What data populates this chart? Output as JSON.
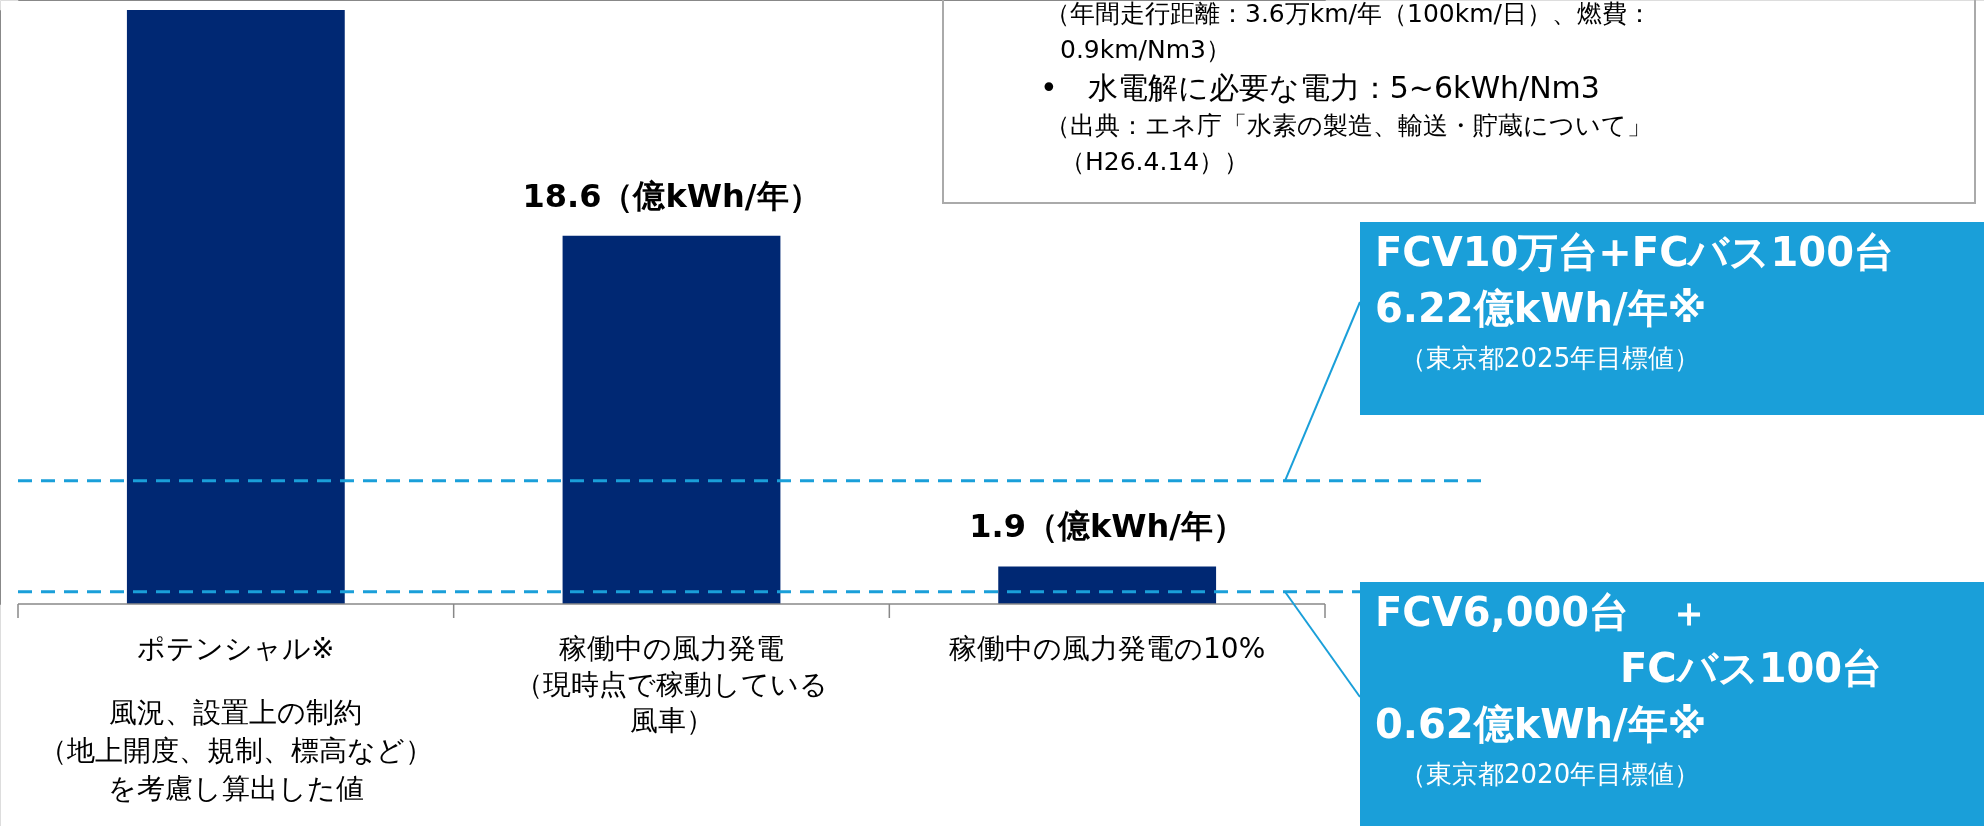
{
  "chart_data": {
    "type": "bar",
    "categories": [
      "ポテンシャル※",
      "稼働中の風力発電（現時点で稼動している風車）",
      "稼働中の風力発電の10%"
    ],
    "values": [
      30,
      18.6,
      1.9
    ],
    "color": "#002873",
    "ylim": [
      0,
      30
    ],
    "tick_labels": "x",
    "value_labels": [
      null,
      "18.6（億kWh/年）",
      "1.9（億kWh/年）"
    ],
    "ref_lines": [
      {
        "axis": "y",
        "value": 6.22,
        "label": "FCV10万台+FCバス100台\n6.22億kWh/年※\n（東京都2025年目標値）",
        "color": "#1a9fd9",
        "line_style": "dashed"
      },
      {
        "axis": "y",
        "value": 0.62,
        "label": "FCV6,000台　＋\nFCバス100台\n0.62億kWh/年※\n（東京都2020年目標値）",
        "color": "#1a9fd9",
        "line_style": "dashed"
      }
    ],
    "annotations": [
      "風況、設置上の制約（地上開度、規制、標高など）を考慮し算出した値",
      "（年間走行距離：3.6万km/年（100km/日）、燃費：0.9km/Nm3）",
      "•　水電解に必要な電力：5~6kWh/Nm3",
      "（出典：エネ庁「水素の製造、輸送・貯蔵について」（H26.4.14））"
    ]
  }
}
